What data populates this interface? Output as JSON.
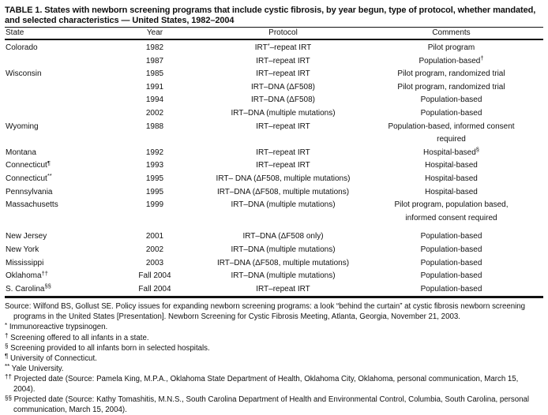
{
  "title": "TABLE 1. States with newborn screening programs that include cystic fibrosis, by year begun, type of protocol, whether mandated, and selected characteristics — United States, 1982–2004",
  "table": {
    "columns": [
      "State",
      "Year",
      "Protocol",
      "Comments"
    ],
    "rows": [
      {
        "state": "Colorado",
        "year": "1982",
        "protocol": "IRT^{*}–repeat IRT",
        "comments": "Pilot program"
      },
      {
        "state": "",
        "year": "1987",
        "protocol": "IRT–repeat IRT",
        "comments": "Population-based^{†}"
      },
      {
        "state": "Wisconsin",
        "year": "1985",
        "protocol": "IRT–repeat IRT",
        "comments": "Pilot program, randomized trial"
      },
      {
        "state": "",
        "year": "1991",
        "protocol": "IRT–DNA (ΔF508)",
        "comments": "Pilot program, randomized trial"
      },
      {
        "state": "",
        "year": "1994",
        "protocol": "IRT–DNA (ΔF508)",
        "comments": "Population-based"
      },
      {
        "state": "",
        "year": "2002",
        "protocol": "IRT–DNA (multiple mutations)",
        "comments": "Population-based"
      },
      {
        "state": "Wyoming",
        "year": "1988",
        "protocol": "IRT–repeat IRT",
        "comments": "Population-based, informed consent required"
      },
      {
        "state": "Montana",
        "year": "1992",
        "protocol": "IRT–repeat IRT",
        "comments": "Hospital-based^{§}"
      },
      {
        "state": "Connecticut^{¶}",
        "year": "1993",
        "protocol": "IRT–repeat IRT",
        "comments": "Hospital-based"
      },
      {
        "state": "Connecticut^{**}",
        "year": "1995",
        "protocol": "IRT– DNA (ΔF508, multiple mutations)",
        "comments": "Hospital-based"
      },
      {
        "state": "Pennsylvania",
        "year": "1995",
        "protocol": "IRT–DNA (ΔF508, multiple mutations)",
        "comments": "Hospital-based"
      },
      {
        "state": "Massachusetts",
        "year": "1999",
        "protocol": "IRT–DNA (multiple mutations)",
        "comments": "Pilot program, population based,\ninformed consent required"
      },
      {
        "state": "New Jersey",
        "year": "2001",
        "protocol": "IRT–DNA (ΔF508 only)",
        "comments": "Population-based",
        "gap_before": true
      },
      {
        "state": "New York",
        "year": "2002",
        "protocol": "IRT–DNA (multiple mutations)",
        "comments": "Population-based"
      },
      {
        "state": "Mississippi",
        "year": "2003",
        "protocol": "IRT–DNA (ΔF508, multiple mutations)",
        "comments": "Population-based"
      },
      {
        "state": "Oklahoma^{††}",
        "year": "Fall 2004",
        "protocol": "IRT–DNA (multiple mutations)",
        "comments": "Population-based"
      },
      {
        "state": "S. Carolina^{§§}",
        "year": "Fall 2004",
        "protocol": "IRT–repeat IRT",
        "comments": "Population-based"
      }
    ]
  },
  "footnotes": [
    {
      "marker": "",
      "text": "Source: Wilfond BS, Gollust SE. Policy issues for expanding newborn screening programs: a look “behind the curtain” at cystic fibrosis newborn screening programs in the United States [Presentation]. Newborn Screening for Cystic Fibrosis Meeting, Atlanta, Georgia, November 21, 2003."
    },
    {
      "marker": "*",
      "text": "Immunoreactive trypsinogen."
    },
    {
      "marker": "†",
      "text": "Screening offered to all infants in a state."
    },
    {
      "marker": "§",
      "text": "Screening provided to all infants born in selected hospitals."
    },
    {
      "marker": "¶",
      "text": "University of Connecticut."
    },
    {
      "marker": "**",
      "text": "Yale University."
    },
    {
      "marker": "††",
      "text": "Projected date (Source: Pamela King, M.P.A., Oklahoma State Department of Health, Oklahoma City, Oklahoma, personal communication, March 15, 2004)."
    },
    {
      "marker": "§§",
      "text": "Projected date (Source: Kathy Tomashitis, M.N.S., South Carolina Department of Health and Environmental Control, Columbia, South Carolina, personal communication, March 15, 2004)."
    }
  ],
  "colors": {
    "text": "#111111",
    "background": "#ffffff",
    "rule": "#111111"
  }
}
